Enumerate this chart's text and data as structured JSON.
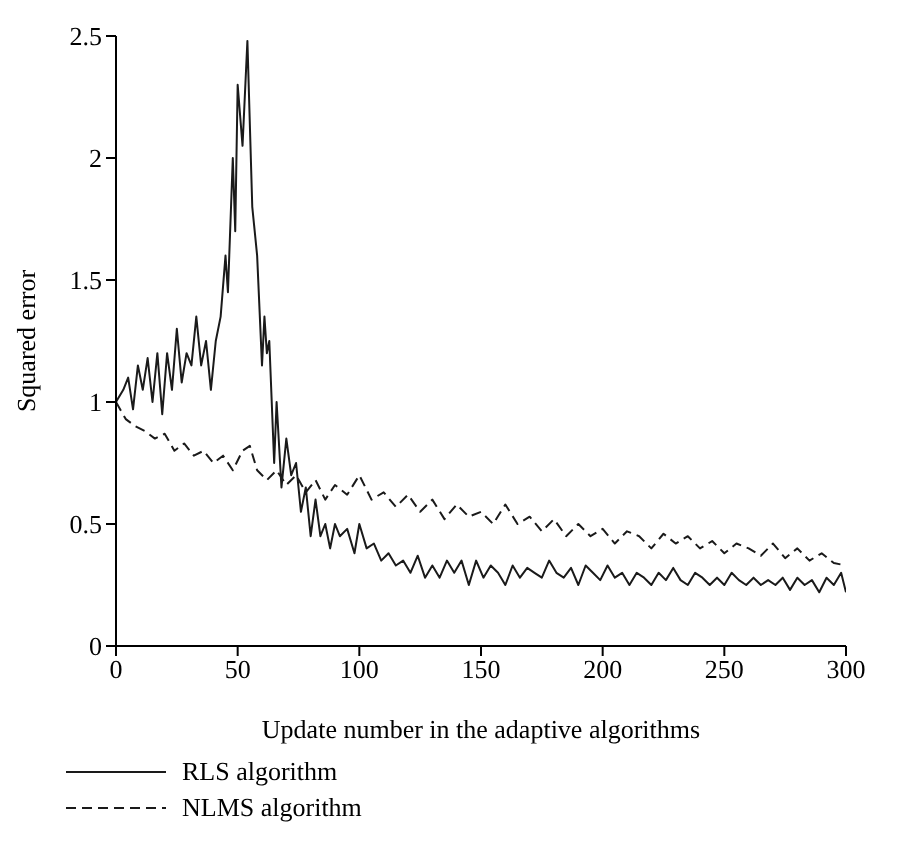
{
  "chart_data": {
    "type": "line",
    "xlabel": "Update number in the adaptive algorithms",
    "ylabel": "Squared error",
    "xlim": [
      0,
      300
    ],
    "xticks": [
      0,
      50,
      100,
      150,
      200,
      250,
      300
    ],
    "ylim": [
      0,
      2.5
    ],
    "yticks": [
      0,
      0.5,
      1,
      1.5,
      2,
      2.5
    ],
    "grid": false,
    "legend": "bottom",
    "marker": "none",
    "series": [
      {
        "name": "RLS algorithm",
        "color": "#1a1a1a",
        "line_style": "solid",
        "x": [
          0,
          3,
          5,
          7,
          9,
          11,
          13,
          15,
          17,
          19,
          21,
          23,
          25,
          27,
          29,
          31,
          33,
          35,
          37,
          39,
          41,
          43,
          45,
          46,
          48,
          49,
          50,
          52,
          54,
          56,
          58,
          60,
          61,
          62,
          63,
          65,
          66,
          68,
          70,
          72,
          74,
          76,
          78,
          80,
          82,
          84,
          86,
          88,
          90,
          92,
          95,
          98,
          100,
          103,
          106,
          109,
          112,
          115,
          118,
          121,
          124,
          127,
          130,
          133,
          136,
          139,
          142,
          145,
          148,
          151,
          154,
          157,
          160,
          163,
          166,
          169,
          172,
          175,
          178,
          181,
          184,
          187,
          190,
          193,
          196,
          199,
          202,
          205,
          208,
          211,
          214,
          217,
          220,
          223,
          226,
          229,
          232,
          235,
          238,
          241,
          244,
          247,
          250,
          253,
          256,
          259,
          262,
          265,
          268,
          271,
          274,
          277,
          280,
          283,
          286,
          289,
          292,
          295,
          298,
          300
        ],
        "values": [
          1.0,
          1.05,
          1.1,
          0.97,
          1.15,
          1.05,
          1.18,
          1.0,
          1.2,
          0.95,
          1.2,
          1.05,
          1.3,
          1.08,
          1.2,
          1.15,
          1.35,
          1.15,
          1.25,
          1.05,
          1.25,
          1.35,
          1.6,
          1.45,
          2.0,
          1.7,
          2.3,
          2.05,
          2.48,
          1.8,
          1.6,
          1.15,
          1.35,
          1.2,
          1.25,
          0.75,
          1.0,
          0.65,
          0.85,
          0.7,
          0.75,
          0.55,
          0.65,
          0.45,
          0.6,
          0.45,
          0.5,
          0.4,
          0.5,
          0.45,
          0.48,
          0.38,
          0.5,
          0.4,
          0.42,
          0.35,
          0.38,
          0.33,
          0.35,
          0.3,
          0.37,
          0.28,
          0.33,
          0.28,
          0.35,
          0.3,
          0.35,
          0.25,
          0.35,
          0.28,
          0.33,
          0.3,
          0.25,
          0.33,
          0.28,
          0.32,
          0.3,
          0.28,
          0.35,
          0.3,
          0.28,
          0.32,
          0.25,
          0.33,
          0.3,
          0.27,
          0.33,
          0.28,
          0.3,
          0.25,
          0.3,
          0.28,
          0.25,
          0.3,
          0.27,
          0.32,
          0.27,
          0.25,
          0.3,
          0.28,
          0.25,
          0.28,
          0.25,
          0.3,
          0.27,
          0.25,
          0.28,
          0.25,
          0.27,
          0.25,
          0.28,
          0.23,
          0.28,
          0.25,
          0.27,
          0.22,
          0.28,
          0.25,
          0.3,
          0.22
        ]
      },
      {
        "name": "NLMS algorithm",
        "color": "#1a1a1a",
        "line_style": "dashed",
        "x": [
          0,
          4,
          8,
          12,
          16,
          20,
          24,
          28,
          32,
          36,
          40,
          44,
          48,
          52,
          55,
          58,
          62,
          66,
          70,
          74,
          78,
          82,
          86,
          90,
          95,
          100,
          105,
          110,
          115,
          120,
          125,
          130,
          135,
          140,
          145,
          150,
          155,
          160,
          165,
          170,
          175,
          180,
          185,
          190,
          195,
          200,
          205,
          210,
          215,
          220,
          225,
          230,
          235,
          240,
          245,
          250,
          255,
          260,
          265,
          270,
          275,
          280,
          285,
          290,
          295,
          300
        ],
        "values": [
          1.0,
          0.93,
          0.9,
          0.88,
          0.85,
          0.87,
          0.8,
          0.83,
          0.78,
          0.8,
          0.75,
          0.78,
          0.72,
          0.8,
          0.82,
          0.72,
          0.68,
          0.72,
          0.66,
          0.7,
          0.63,
          0.68,
          0.6,
          0.66,
          0.62,
          0.7,
          0.6,
          0.63,
          0.57,
          0.62,
          0.55,
          0.6,
          0.52,
          0.58,
          0.53,
          0.55,
          0.5,
          0.58,
          0.5,
          0.53,
          0.47,
          0.52,
          0.45,
          0.5,
          0.45,
          0.48,
          0.42,
          0.47,
          0.45,
          0.4,
          0.46,
          0.42,
          0.45,
          0.4,
          0.43,
          0.38,
          0.42,
          0.4,
          0.37,
          0.42,
          0.36,
          0.4,
          0.35,
          0.38,
          0.34,
          0.33
        ]
      }
    ]
  }
}
